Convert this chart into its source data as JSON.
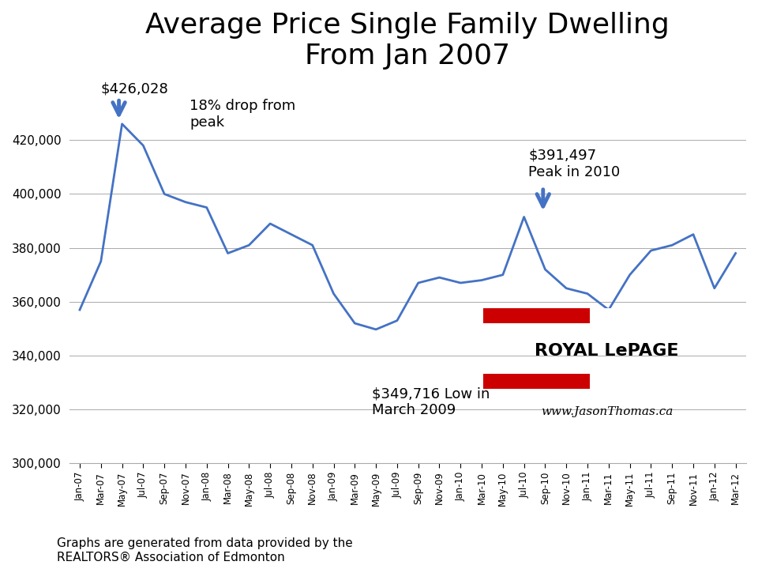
{
  "title": "Average Price Single Family Dwelling\nFrom Jan 2007",
  "title_fontsize": 26,
  "ylim": [
    300000,
    440000
  ],
  "yticks": [
    300000,
    320000,
    340000,
    360000,
    380000,
    400000,
    420000
  ],
  "ytick_labels": [
    "300,000",
    "320,000",
    "340,000",
    "360,000",
    "380,000",
    "400,000",
    "420,000"
  ],
  "line_color": "#4472C4",
  "line_width": 2.0,
  "background_color": "#ffffff",
  "footer_text": "Graphs are generated from data provided by the\nREALTORS® Association of Edmonton",
  "labels": [
    "Jan-07",
    "Mar-07",
    "May-07",
    "Jul-07",
    "Sep-07",
    "Nov-07",
    "Jan-08",
    "Mar-08",
    "May-08",
    "Jul-08",
    "Sep-08",
    "Nov-08",
    "Jan-09",
    "Mar-09",
    "May-09",
    "Jul-09",
    "Sep-09",
    "Nov-09",
    "Jan-10",
    "Mar-10",
    "May-10",
    "Jul-10",
    "Sep-10",
    "Nov-10",
    "Jan-11",
    "Mar-11",
    "May-11",
    "Jul-11",
    "Sep-11",
    "Nov-11",
    "Jan-12",
    "Mar-12"
  ],
  "values": [
    357000,
    375000,
    426028,
    418000,
    400000,
    397000,
    395000,
    378000,
    381000,
    389000,
    385000,
    381000,
    363000,
    352000,
    349716,
    353000,
    367000,
    369000,
    367000,
    368000,
    370000,
    391497,
    372000,
    365000,
    363000,
    357000,
    370000,
    379000,
    381000,
    385000,
    365000,
    378000
  ],
  "arrow_color": "#4472C4",
  "website_text": "www.JasonThomas.ca",
  "logo_red": "#CC0000",
  "logo_text": "ROYAL LePAGE"
}
